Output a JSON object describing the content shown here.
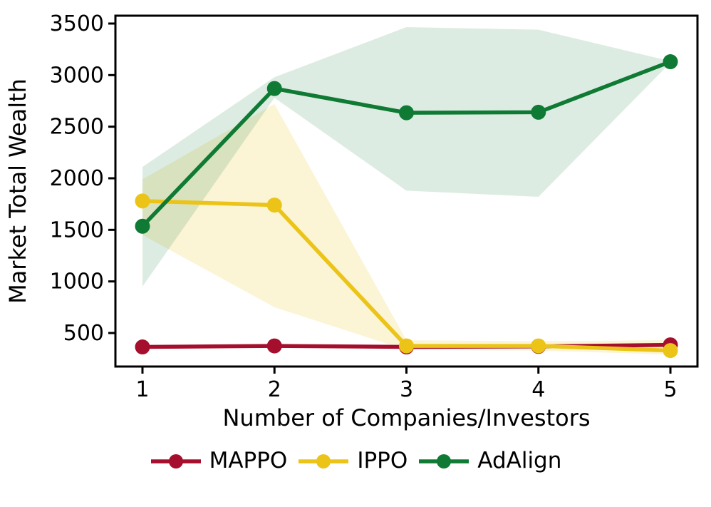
{
  "figure": {
    "background": "#ffffff",
    "text_color": "#000000"
  },
  "chart_data": {
    "type": "line",
    "title": "",
    "xlabel": "Number of Companies/Investors",
    "ylabel": "Market Total Wealth",
    "x": [
      1,
      2,
      3,
      4,
      5
    ],
    "xtick_labels": [
      "1",
      "2",
      "3",
      "4",
      "5"
    ],
    "yticks": [
      500,
      1000,
      1500,
      2000,
      2500,
      3000,
      3500
    ],
    "ytick_labels": [
      "500",
      "1000",
      "1500",
      "2000",
      "2500",
      "3000",
      "3500"
    ],
    "xlim": [
      0.795,
      5.205
    ],
    "ylim": [
      175,
      3576
    ],
    "grid": false,
    "legend_position": "below",
    "series": [
      {
        "name": "MAPPO",
        "color": "#a50e2d",
        "values": [
          365,
          375,
          365,
          370,
          385
        ],
        "band_upper": null,
        "band_lower": null,
        "band_opacity": 0
      },
      {
        "name": "IPPO",
        "color": "#ebc417",
        "values": [
          1780,
          1740,
          375,
          375,
          330
        ],
        "band_upper": [
          1990,
          2720,
          430,
          420,
          430
        ],
        "band_lower": [
          1450,
          750,
          335,
          330,
          290
        ],
        "band_opacity": 0.18
      },
      {
        "name": "AdAlign",
        "color": "#0e7a33",
        "values": [
          1535,
          2870,
          2635,
          2640,
          3130
        ],
        "band_upper": [
          2110,
          2980,
          3465,
          3440,
          3135
        ],
        "band_lower": [
          950,
          2780,
          1880,
          1820,
          3120
        ],
        "band_opacity": 0.14
      }
    ]
  }
}
